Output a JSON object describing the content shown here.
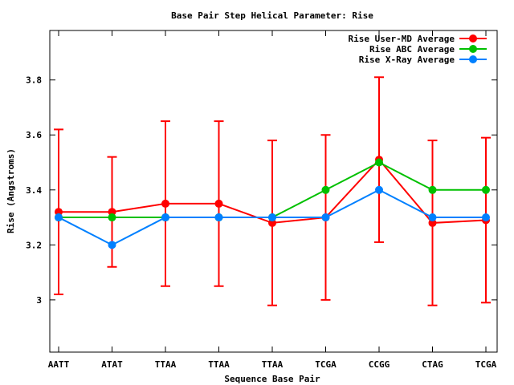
{
  "chart_data": {
    "type": "line",
    "title": "Base Pair Step Helical Parameter: Rise",
    "xlabel": "Sequence Base Pair",
    "ylabel": "Rise (Angstroms)",
    "categories": [
      "AATT",
      "ATAT",
      "TTAA",
      "TTAA",
      "TTAA",
      "TCGA",
      "CCGG",
      "CTAG",
      "TCGA"
    ],
    "ylim": [
      2.81,
      3.98
    ],
    "yticks": [
      3,
      3.2,
      3.4,
      3.6,
      3.8
    ],
    "ytick_labels": [
      "3",
      "3.2",
      "3.4",
      "3.6",
      "3.8"
    ],
    "grid": false,
    "legend_position": "top-right",
    "series": [
      {
        "name": "Rise User-MD Average",
        "color": "#ff0000",
        "values": [
          3.32,
          3.32,
          3.35,
          3.35,
          3.28,
          3.3,
          3.51,
          3.28,
          3.29
        ],
        "error_low": [
          3.02,
          3.12,
          3.05,
          3.05,
          2.98,
          3.0,
          3.21,
          2.98,
          2.99
        ],
        "error_high": [
          3.62,
          3.52,
          3.65,
          3.65,
          3.58,
          3.6,
          3.81,
          3.58,
          3.59
        ]
      },
      {
        "name": "Rise ABC Average",
        "color": "#00c000",
        "values": [
          3.3,
          3.3,
          3.3,
          3.3,
          3.3,
          3.4,
          3.5,
          3.4,
          3.4
        ]
      },
      {
        "name": "Rise X-Ray Average",
        "color": "#0080ff",
        "values": [
          3.3,
          3.2,
          3.3,
          3.3,
          3.3,
          3.3,
          3.4,
          3.3,
          3.3
        ]
      }
    ]
  }
}
